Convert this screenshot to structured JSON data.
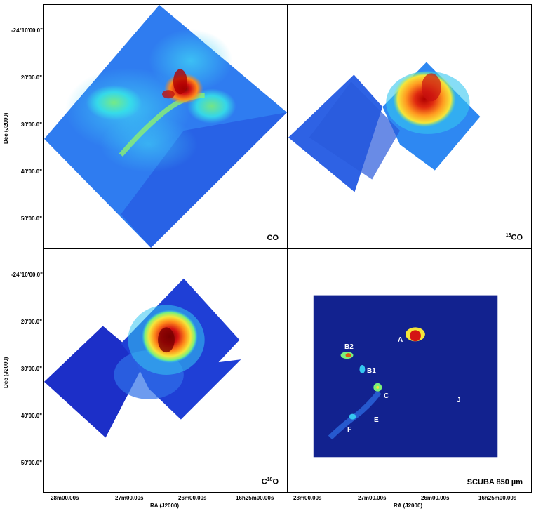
{
  "panels": {
    "top_left": {
      "label_main": "CO",
      "label_sup": ""
    },
    "top_right": {
      "label_main": "CO",
      "label_sup": "13"
    },
    "bottom_left": {
      "label_pre": "C",
      "label_sup": "18",
      "label_post": "O"
    },
    "bottom_right": {
      "label_main": "SCUBA 850 µm",
      "sources": [
        "A",
        "B2",
        "B1",
        "C",
        "J",
        "E",
        "F"
      ]
    }
  },
  "axes": {
    "y_ticks": [
      "-24°10'00.0\"",
      "20'00.0\"",
      "30'00.0\"",
      "40'00.0\"",
      "50'00.0\""
    ],
    "x_ticks": [
      "28m00.00s",
      "27m00.00s",
      "26m00.00s",
      "16h25m00.00s"
    ],
    "y_title": "Dec (J2000)",
    "x_title": "RA (J2000)"
  },
  "colors": {
    "low": "#1a33d6",
    "mid": "#2aa8ff",
    "cyan": "#35e0e8",
    "green": "#7cf07a",
    "yellow": "#f5e63a",
    "orange": "#ff8a1a",
    "red": "#d41414",
    "dark": "#6a0000",
    "scuba_bg": "#12228f"
  }
}
